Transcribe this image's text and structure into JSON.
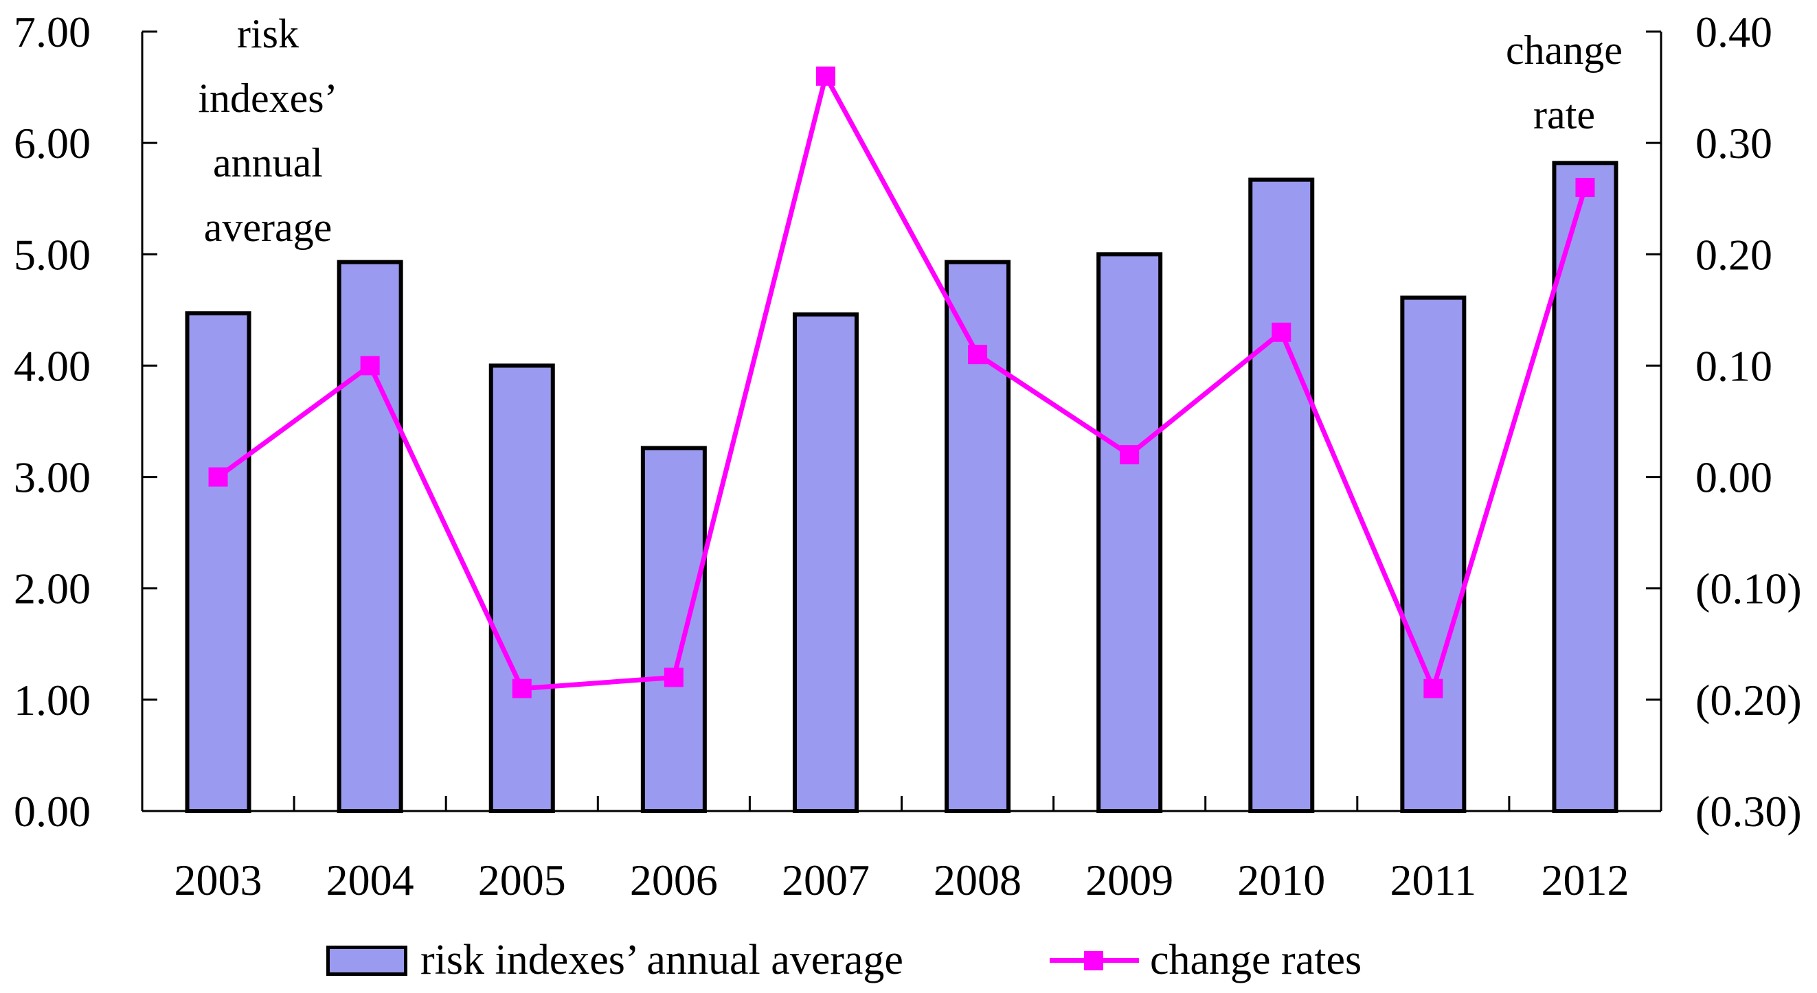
{
  "chart_data": {
    "type": "bar",
    "subtype": "bar-line-combo",
    "categories": [
      "2003",
      "2004",
      "2005",
      "2006",
      "2007",
      "2008",
      "2009",
      "2010",
      "2011",
      "2012"
    ],
    "series": [
      {
        "name": "risk indexes’ annual average",
        "type": "bar",
        "axis": "left",
        "color": "#9A9AF0",
        "border_color": "#000000",
        "values": [
          4.47,
          4.93,
          4.0,
          3.26,
          4.46,
          4.93,
          5.0,
          5.67,
          4.61,
          5.82
        ]
      },
      {
        "name": "change rates",
        "type": "line",
        "axis": "right",
        "color": "#FF00FF",
        "marker": "square",
        "values": [
          0.0,
          0.1,
          -0.19,
          -0.18,
          0.36,
          0.11,
          0.02,
          0.13,
          -0.19,
          0.26
        ]
      }
    ],
    "left_axis": {
      "label_lines": [
        "risk",
        "indexes’",
        "annual",
        "average"
      ],
      "min": 0,
      "max": 7,
      "tick_step": 1,
      "tick_labels": [
        "7.00",
        "6.00",
        "5.00",
        "4.00",
        "3.00",
        "2.00",
        "1.00",
        "0.00"
      ]
    },
    "right_axis": {
      "label_lines": [
        "change",
        "rate"
      ],
      "min": -0.3,
      "max": 0.4,
      "tick_step": 0.1,
      "tick_labels": [
        "0.40",
        "0.30",
        "0.20",
        "0.10",
        "0.00",
        "(0.10)",
        "(0.20)",
        "(0.30)"
      ],
      "negative_color": "#FF0000"
    },
    "legend": {
      "position": "bottom",
      "items": [
        "risk indexes’ annual average",
        "change rates"
      ]
    },
    "grid": false
  }
}
